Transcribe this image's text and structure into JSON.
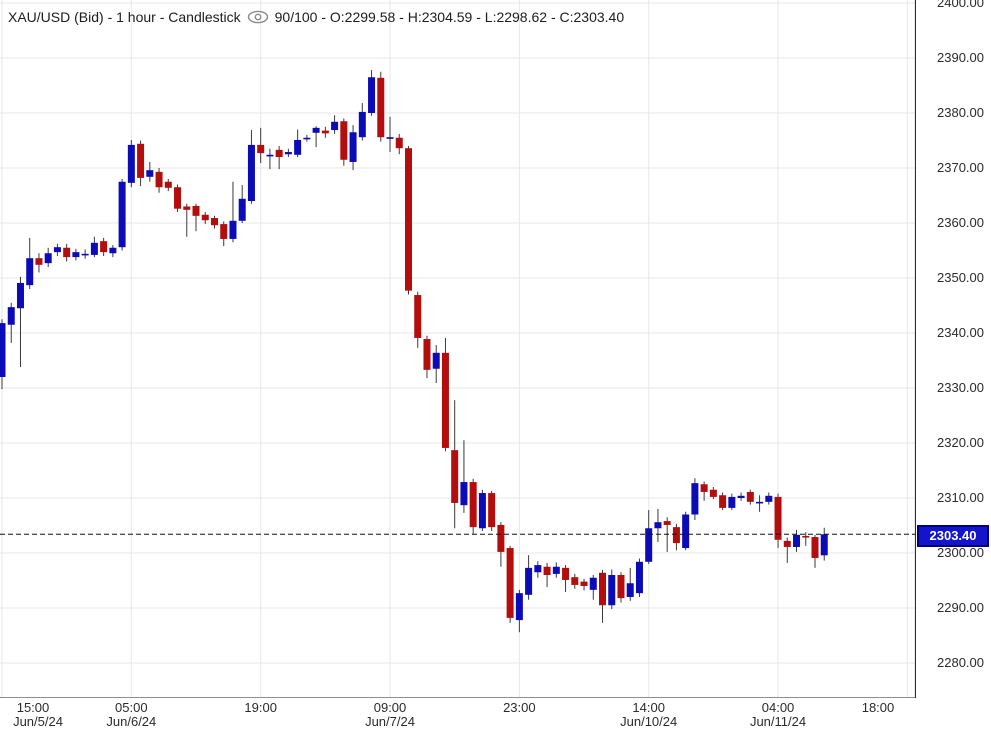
{
  "header": {
    "symbol_title": "XAU/USD (Bid) - 1 hour - Candlestick",
    "visible_bars_and_ohlc": "90/100 - O:2299.58 - H:2304.59 - L:2298.62 - C:2303.40"
  },
  "price_axis": {
    "labels": [
      "2400.00",
      "2390.00",
      "2380.00",
      "2370.00",
      "2360.00",
      "2350.00",
      "2340.00",
      "2330.00",
      "2320.00",
      "2310.00",
      "2300.00",
      "2290.00",
      "2280.00"
    ],
    "current_price_label": "2303.40"
  },
  "colors": {
    "up": "#0b0bb8",
    "down": "#b40d0d",
    "wick": "#3a3a3a",
    "grid": "#e7e7e7",
    "axis_line": "#8f8f8f",
    "axis_border": "#2f2f2f",
    "dashed_line": "#111111",
    "badge_bg": "#1414cc",
    "badge_border": "#00007d",
    "icon": "#8a8a8a"
  },
  "chart_data": {
    "type": "candlestick",
    "symbol": "XAU/USD (Bid)",
    "interval": "1 hour",
    "title": "XAU/USD (Bid) - 1 hour - Candlestick",
    "ylim": [
      2273.5,
      2400.5
    ],
    "price_gridlines": [
      2400,
      2390,
      2380,
      2370,
      2360,
      2350,
      2340,
      2330,
      2320,
      2310,
      2300,
      2290,
      2280
    ],
    "current_price": 2303.4,
    "last_bar_ohlc": {
      "open": 2299.58,
      "high": 2304.59,
      "low": 2298.62,
      "close": 2303.4
    },
    "grid": true,
    "x_ticks": [
      {
        "index": 0,
        "time": "15:00",
        "date": "Jun/5/24"
      },
      {
        "index": 14,
        "time": "05:00",
        "date": "Jun/6/24"
      },
      {
        "index": 28,
        "time": "19:00",
        "date": ""
      },
      {
        "index": 42,
        "time": "09:00",
        "date": "Jun/7/24"
      },
      {
        "index": 56,
        "time": "23:00",
        "date": ""
      },
      {
        "index": 70,
        "time": "14:00",
        "date": "Jun/10/24"
      },
      {
        "index": 84,
        "time": "04:00",
        "date": "Jun/11/24"
      },
      {
        "index": 98,
        "time": "18:00",
        "date": ""
      }
    ],
    "candles": [
      [
        2332.0,
        2342.5,
        2329.8,
        2341.8
      ],
      [
        2341.5,
        2345.5,
        2338.2,
        2344.7
      ],
      [
        2344.5,
        2350.2,
        2333.8,
        2349.1
      ],
      [
        2348.7,
        2357.3,
        2348.0,
        2353.6
      ],
      [
        2353.6,
        2354.5,
        2351.0,
        2352.4
      ],
      [
        2352.7,
        2355.5,
        2352.0,
        2354.5
      ],
      [
        2354.7,
        2356.2,
        2354.0,
        2355.6
      ],
      [
        2355.5,
        2356.2,
        2353.0,
        2353.8
      ],
      [
        2353.8,
        2355.3,
        2353.2,
        2354.7
      ],
      [
        2354.4,
        2355.2,
        2353.5,
        2354.4
      ],
      [
        2354.2,
        2357.5,
        2353.8,
        2356.4
      ],
      [
        2356.7,
        2357.3,
        2354.0,
        2354.7
      ],
      [
        2354.5,
        2356.0,
        2353.8,
        2355.5
      ],
      [
        2355.6,
        2368.0,
        2355.0,
        2367.5
      ],
      [
        2367.3,
        2375.1,
        2366.5,
        2374.2
      ],
      [
        2374.4,
        2375.0,
        2366.7,
        2368.2
      ],
      [
        2368.4,
        2371.1,
        2367.5,
        2369.6
      ],
      [
        2369.3,
        2370.0,
        2365.5,
        2366.5
      ],
      [
        2367.5,
        2368.0,
        2365.8,
        2366.4
      ],
      [
        2366.5,
        2367.0,
        2362.0,
        2362.6
      ],
      [
        2363.0,
        2363.5,
        2357.5,
        2362.4
      ],
      [
        2363.1,
        2363.5,
        2358.5,
        2361.3
      ],
      [
        2361.5,
        2362.0,
        2359.8,
        2360.5
      ],
      [
        2360.9,
        2361.3,
        2359.0,
        2359.6
      ],
      [
        2359.8,
        2360.3,
        2355.8,
        2357.1
      ],
      [
        2357.1,
        2367.5,
        2356.5,
        2360.4
      ],
      [
        2360.4,
        2366.9,
        2360.0,
        2364.4
      ],
      [
        2364.0,
        2376.9,
        2363.5,
        2374.2
      ],
      [
        2374.2,
        2377.3,
        2370.9,
        2372.7
      ],
      [
        2372.4,
        2373.5,
        2369.8,
        2372.4
      ],
      [
        2373.3,
        2374.0,
        2369.8,
        2372.0
      ],
      [
        2372.5,
        2373.5,
        2372.0,
        2372.9
      ],
      [
        2372.4,
        2377.0,
        2372.0,
        2375.1
      ],
      [
        2375.3,
        2376.0,
        2374.8,
        2375.5
      ],
      [
        2376.4,
        2377.6,
        2373.8,
        2377.3
      ],
      [
        2376.8,
        2377.5,
        2375.5,
        2376.3
      ],
      [
        2376.9,
        2379.6,
        2376.2,
        2378.4
      ],
      [
        2378.5,
        2379.0,
        2370.4,
        2371.5
      ],
      [
        2371.1,
        2377.8,
        2369.6,
        2376.5
      ],
      [
        2375.6,
        2381.8,
        2375.0,
        2380.2
      ],
      [
        2380.0,
        2387.8,
        2379.5,
        2386.5
      ],
      [
        2386.4,
        2387.5,
        2374.8,
        2375.6
      ],
      [
        2375.3,
        2379.3,
        2372.9,
        2375.6
      ],
      [
        2375.5,
        2376.2,
        2372.5,
        2373.6
      ],
      [
        2373.6,
        2374.0,
        2347.0,
        2347.7
      ],
      [
        2346.9,
        2347.5,
        2337.3,
        2339.1
      ],
      [
        2338.9,
        2339.5,
        2331.8,
        2333.3
      ],
      [
        2333.5,
        2337.8,
        2330.9,
        2336.4
      ],
      [
        2336.4,
        2339.1,
        2318.5,
        2319.1
      ],
      [
        2318.7,
        2327.8,
        2304.5,
        2309.1
      ],
      [
        2308.7,
        2320.5,
        2307.3,
        2312.9
      ],
      [
        2312.9,
        2313.5,
        2303.5,
        2304.7
      ],
      [
        2304.5,
        2311.5,
        2304.0,
        2310.9
      ],
      [
        2310.9,
        2311.3,
        2304.0,
        2304.7
      ],
      [
        2305.1,
        2305.6,
        2297.5,
        2300.2
      ],
      [
        2300.9,
        2301.3,
        2287.3,
        2288.2
      ],
      [
        2287.8,
        2293.3,
        2285.6,
        2292.7
      ],
      [
        2292.4,
        2299.6,
        2291.5,
        2297.3
      ],
      [
        2296.5,
        2298.5,
        2295.5,
        2297.8
      ],
      [
        2297.5,
        2298.2,
        2293.8,
        2296.0
      ],
      [
        2296.2,
        2298.3,
        2295.5,
        2297.5
      ],
      [
        2297.3,
        2297.8,
        2292.9,
        2295.1
      ],
      [
        2295.6,
        2296.2,
        2293.5,
        2294.2
      ],
      [
        2294.8,
        2295.3,
        2293.2,
        2294.0
      ],
      [
        2293.3,
        2296.0,
        2291.5,
        2295.5
      ],
      [
        2296.4,
        2296.9,
        2287.3,
        2290.5
      ],
      [
        2290.5,
        2297.0,
        2289.8,
        2296.0
      ],
      [
        2296.0,
        2296.5,
        2291.0,
        2291.8
      ],
      [
        2292.0,
        2297.3,
        2291.3,
        2294.5
      ],
      [
        2292.7,
        2299.0,
        2292.0,
        2298.4
      ],
      [
        2298.4,
        2307.8,
        2298.0,
        2304.5
      ],
      [
        2304.5,
        2308.0,
        2302.0,
        2305.6
      ],
      [
        2305.8,
        2306.5,
        2300.2,
        2305.1
      ],
      [
        2304.7,
        2305.3,
        2300.5,
        2301.8
      ],
      [
        2300.9,
        2307.5,
        2300.5,
        2307.0
      ],
      [
        2307.0,
        2313.6,
        2306.0,
        2312.7
      ],
      [
        2312.5,
        2313.0,
        2309.5,
        2311.1
      ],
      [
        2311.5,
        2312.0,
        2309.8,
        2310.2
      ],
      [
        2310.5,
        2311.0,
        2307.8,
        2308.2
      ],
      [
        2308.2,
        2310.8,
        2307.8,
        2310.2
      ],
      [
        2310.0,
        2311.0,
        2309.5,
        2310.4
      ],
      [
        2311.1,
        2311.5,
        2308.8,
        2309.3
      ],
      [
        2309.1,
        2310.5,
        2307.5,
        2309.3
      ],
      [
        2309.3,
        2311.0,
        2308.8,
        2310.4
      ],
      [
        2310.2,
        2310.8,
        2300.9,
        2302.4
      ],
      [
        2302.2,
        2302.8,
        2298.2,
        2301.1
      ],
      [
        2301.1,
        2304.2,
        2300.2,
        2303.3
      ],
      [
        2303.1,
        2303.8,
        2301.3,
        2302.9
      ],
      [
        2302.9,
        2303.3,
        2297.3,
        2299.1
      ],
      [
        2299.58,
        2304.59,
        2298.62,
        2303.4
      ]
    ]
  }
}
